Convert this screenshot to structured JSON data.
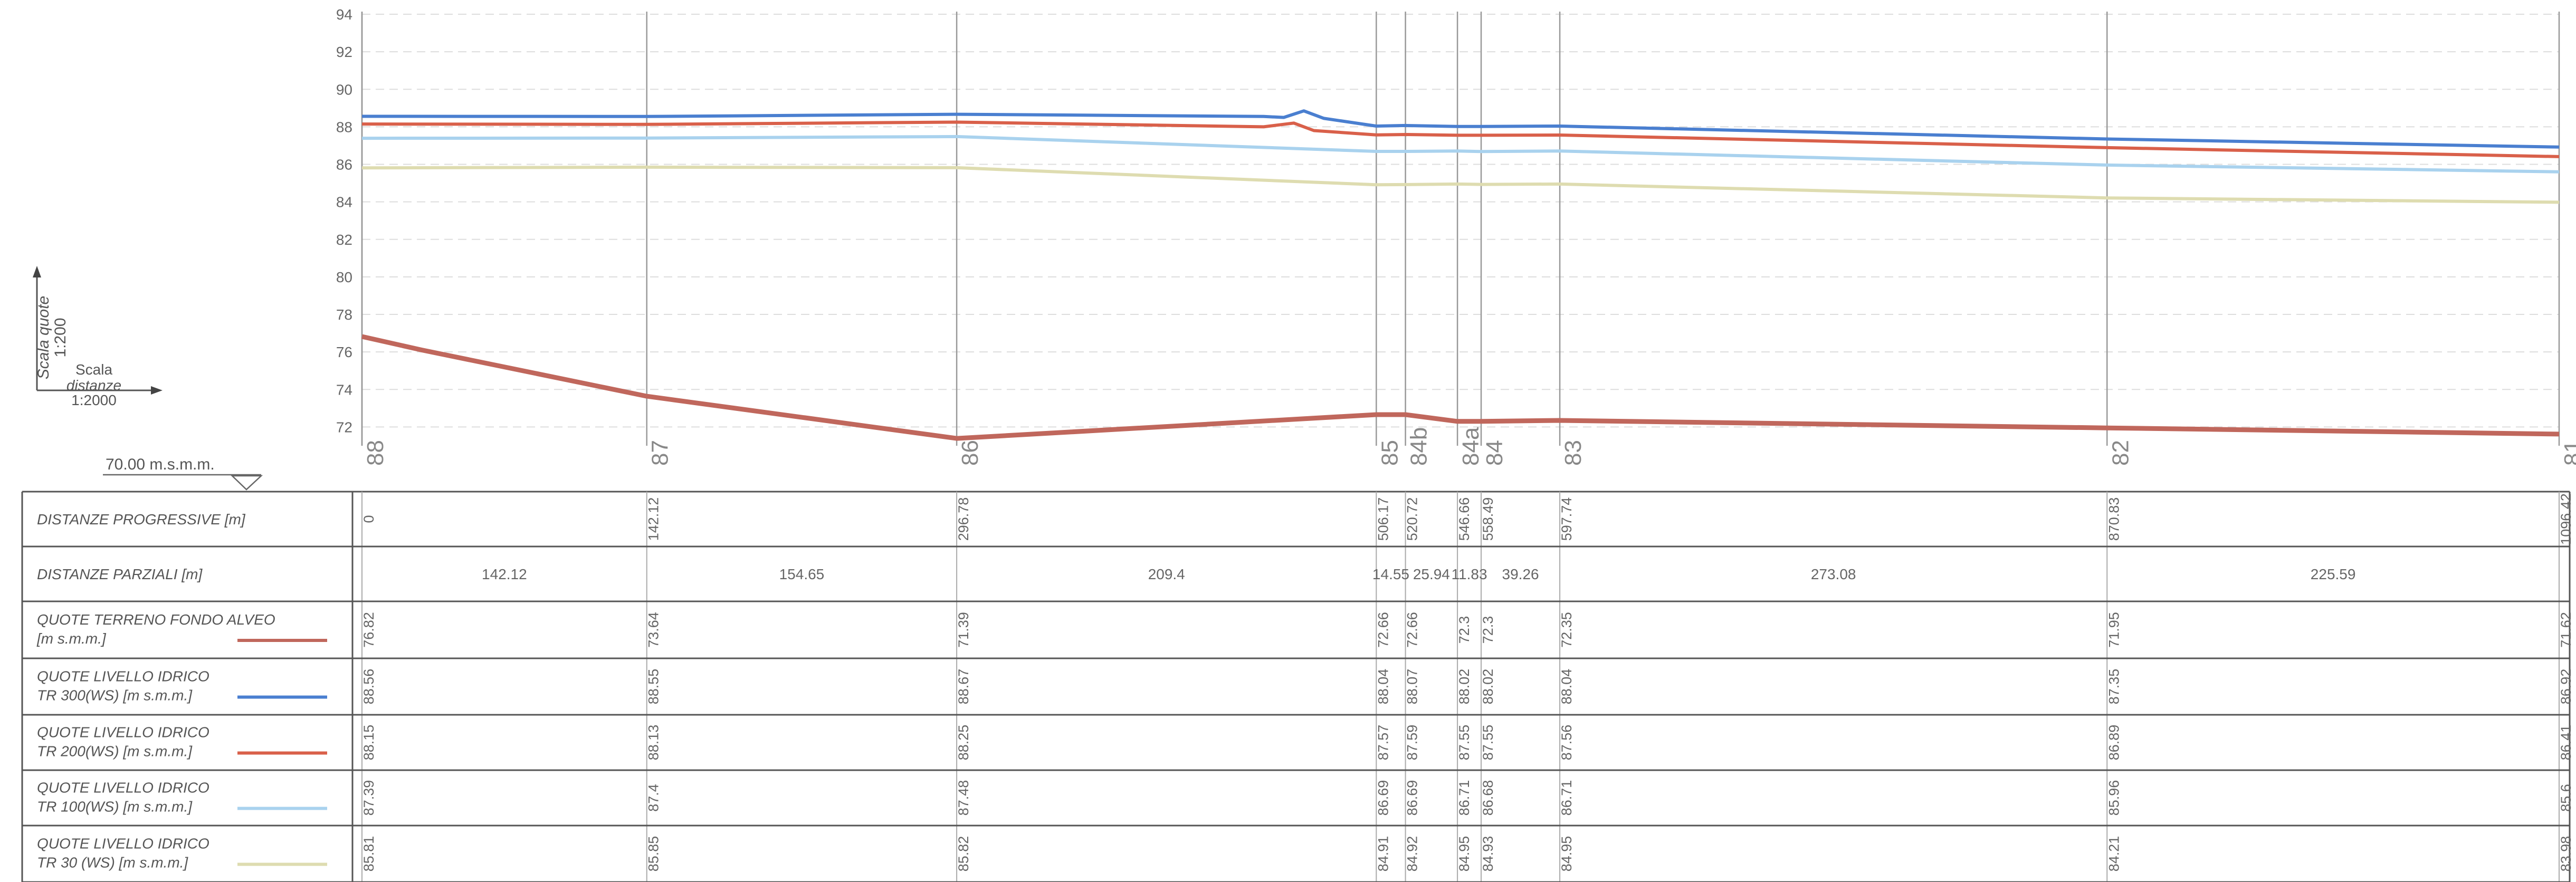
{
  "scale": {
    "vertical_label": "Scala quote",
    "vertical_ratio": "1:200",
    "horizontal_label_1": "Scala",
    "horizontal_label_2": "distanze",
    "horizontal_ratio": "1:2000",
    "datum": "70.00  m.s.m.m."
  },
  "chart_data": {
    "type": "line",
    "title": "",
    "xlabel": "",
    "ylabel": "",
    "xlim": [
      0,
      1096.42
    ],
    "ylim": [
      71,
      94
    ],
    "y_ticks": [
      72,
      74,
      76,
      78,
      80,
      82,
      84,
      86,
      88,
      90,
      92,
      94
    ],
    "grid": true,
    "sections": [
      {
        "name": "88",
        "x": 0
      },
      {
        "name": "87",
        "x": 142.12
      },
      {
        "name": "86",
        "x": 296.78
      },
      {
        "name": "85",
        "x": 506.17
      },
      {
        "name": "84b",
        "x": 520.72
      },
      {
        "name": "84a",
        "x": 546.66
      },
      {
        "name": "84",
        "x": 558.49
      },
      {
        "name": "83",
        "x": 597.74
      },
      {
        "name": "82",
        "x": 870.83
      },
      {
        "name": "81",
        "x": 1096.42
      }
    ],
    "series": [
      {
        "name": "TR 300(WS)",
        "color": "#4a7fd0",
        "x": [
          0,
          142.12,
          296.78,
          450,
          460,
          470,
          480,
          506.17,
          520.72,
          546.66,
          558.49,
          597.74,
          870.83,
          1096.42
        ],
        "y": [
          88.56,
          88.55,
          88.67,
          88.55,
          88.5,
          88.85,
          88.45,
          88.04,
          88.07,
          88.02,
          88.02,
          88.04,
          87.35,
          86.92
        ]
      },
      {
        "name": "TR 200(WS)",
        "color": "#d9604a",
        "x": [
          0,
          142.12,
          296.78,
          450,
          465,
          475,
          506.17,
          520.72,
          546.66,
          558.49,
          597.74,
          870.83,
          1096.42
        ],
        "y": [
          88.15,
          88.13,
          88.25,
          88.0,
          88.2,
          87.8,
          87.57,
          87.59,
          87.55,
          87.55,
          87.56,
          86.89,
          86.41
        ]
      },
      {
        "name": "TR 100(WS)",
        "color": "#a9d2ee",
        "x": [
          0,
          142.12,
          296.78,
          506.17,
          520.72,
          546.66,
          558.49,
          597.74,
          870.83,
          1096.42
        ],
        "y": [
          87.39,
          87.4,
          87.48,
          86.69,
          86.69,
          86.71,
          86.68,
          86.71,
          85.96,
          85.6
        ]
      },
      {
        "name": "TR 30 (WS)",
        "color": "#dedcb0",
        "x": [
          0,
          142.12,
          296.78,
          506.17,
          520.72,
          546.66,
          558.49,
          597.74,
          870.83,
          1096.42
        ],
        "y": [
          85.81,
          85.85,
          85.82,
          84.91,
          84.92,
          84.95,
          84.93,
          84.95,
          84.21,
          83.98
        ]
      },
      {
        "name": "TERRENO FONDO ALVEO",
        "color": "#c0675c",
        "x": [
          0,
          30,
          142.12,
          296.78,
          506.17,
          520.72,
          546.66,
          558.49,
          597.74,
          870.83,
          1096.42
        ],
        "y": [
          76.82,
          76.1,
          73.64,
          71.39,
          72.66,
          72.66,
          72.3,
          72.3,
          72.35,
          71.95,
          71.62
        ]
      }
    ]
  },
  "table": {
    "rows": [
      {
        "label_1": "DISTANZE PROGRESSIVE [m]",
        "label_2": "",
        "color": "",
        "values": [
          "0",
          "142.12",
          "296.78",
          "506.17",
          "520.72",
          "546.66",
          "558.49",
          "597.74",
          "870.83",
          "1096.42"
        ]
      },
      {
        "label_1": "DISTANZE PARZIALI [m]",
        "label_2": "",
        "color": "",
        "values": [
          "142.12",
          "154.65",
          "209.4",
          "14.55",
          "25.94",
          "11.83",
          "39.26",
          "273.08",
          "225.59"
        ]
      },
      {
        "label_1": "QUOTE TERRENO FONDO ALVEO",
        "label_2": "[m s.m.m.]",
        "color": "#c0675c",
        "values": [
          "76.82",
          "73.64",
          "71.39",
          "72.66",
          "72.66",
          "72.3",
          "72.3",
          "72.35",
          "71.95",
          "71.62"
        ]
      },
      {
        "label_1": "QUOTE LIVELLO IDRICO",
        "label_2": "TR 300(WS) [m s.m.m.]",
        "color": "#4a7fd0",
        "values": [
          "88.56",
          "88.55",
          "88.67",
          "88.04",
          "88.07",
          "88.02",
          "88.02",
          "88.04",
          "87.35",
          "86.92"
        ]
      },
      {
        "label_1": "QUOTE LIVELLO IDRICO",
        "label_2": "TR 200(WS) [m s.m.m.]",
        "color": "#d9604a",
        "values": [
          "88.15",
          "88.13",
          "88.25",
          "87.57",
          "87.59",
          "87.55",
          "87.55",
          "87.56",
          "86.89",
          "86.41"
        ]
      },
      {
        "label_1": "QUOTE LIVELLO IDRICO",
        "label_2": "TR 100(WS) [m s.m.m.]",
        "color": "#a9d2ee",
        "values": [
          "87.39",
          "87.4",
          "87.48",
          "86.69",
          "86.69",
          "86.71",
          "86.68",
          "86.71",
          "85.96",
          "85.6"
        ]
      },
      {
        "label_1": "QUOTE LIVELLO IDRICO",
        "label_2": "TR 30 (WS) [m s.m.m.]",
        "color": "#dedcb0",
        "values": [
          "85.81",
          "85.85",
          "85.82",
          "84.91",
          "84.92",
          "84.95",
          "84.93",
          "84.95",
          "84.21",
          "83.98"
        ]
      }
    ]
  }
}
